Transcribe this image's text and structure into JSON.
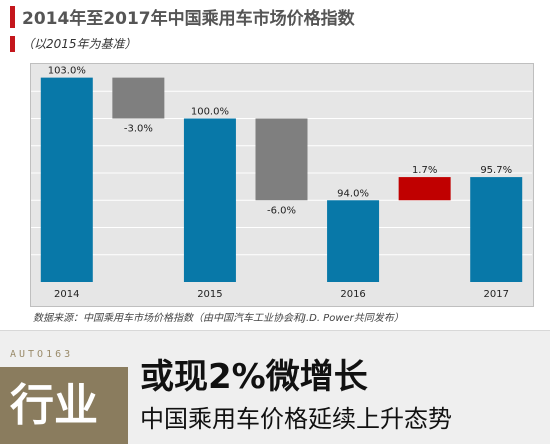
{
  "header": {
    "title": "2014年至2017年中国乘用车市场价格指数",
    "subtitle": "（以2015年为基准）"
  },
  "chart_data": {
    "type": "bar",
    "subtype": "waterfall",
    "categories": [
      "2014",
      "",
      "2015",
      "",
      "2016",
      "",
      "2017"
    ],
    "items": [
      {
        "kind": "total",
        "category": "2014",
        "value": 103.0,
        "label": "103.0%"
      },
      {
        "kind": "change",
        "value": -3.0,
        "label": "-3.0%"
      },
      {
        "kind": "total",
        "category": "2015",
        "value": 100.0,
        "label": "100.0%"
      },
      {
        "kind": "change",
        "value": -6.0,
        "label": "-6.0%"
      },
      {
        "kind": "total",
        "category": "2016",
        "value": 94.0,
        "label": "94.0%"
      },
      {
        "kind": "change",
        "value": 1.7,
        "label": "1.7%"
      },
      {
        "kind": "total",
        "category": "2017",
        "value": 95.7,
        "label": "95.7%"
      }
    ],
    "ylim": [
      88,
      104
    ],
    "grid": true,
    "colors": {
      "total": "#0878a8",
      "decrease": "#7f7f7f",
      "increase": "#c00000",
      "panel": "#e6e6e6",
      "gridline": "#ffffff"
    }
  },
  "source": "数据来源：中国乘用车市场价格指数（由中国汽车工业协会和J.D. Power共同发布）",
  "banner": {
    "brand_logo": "AUTO163",
    "brand_word": "行业",
    "headline": "或现2%微增长",
    "subheadline": "中国乘用车价格延续上升态势"
  }
}
